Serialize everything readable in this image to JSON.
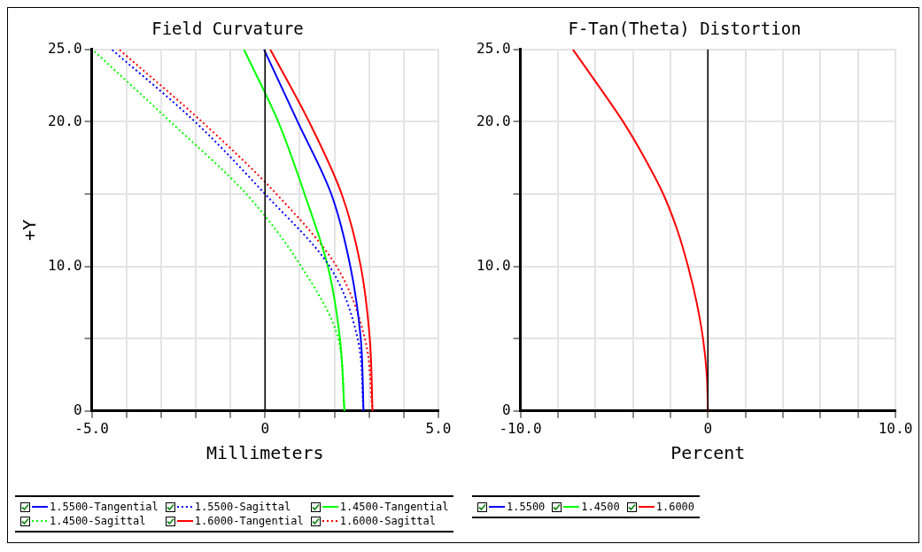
{
  "chart_data": [
    {
      "type": "line",
      "title": "Field Curvature",
      "xlabel": "Millimeters",
      "ylabel": "+Y",
      "xlim": [
        -5,
        5
      ],
      "ylim": [
        0,
        25
      ],
      "xticks": [
        {
          "value": -5,
          "label": "-5.0"
        },
        {
          "value": -4,
          "label": null
        },
        {
          "value": -3,
          "label": null
        },
        {
          "value": -2,
          "label": null
        },
        {
          "value": -1,
          "label": null
        },
        0,
        {
          "value": 1,
          "label": null
        },
        {
          "value": 2,
          "label": null
        },
        {
          "value": 3,
          "label": null
        },
        {
          "value": 4,
          "label": null
        },
        {
          "value": 5,
          "label": "5.0"
        }
      ],
      "yticks": [
        0,
        {
          "value": 5,
          "label": null
        },
        {
          "value": 10,
          "label": "10.0"
        },
        {
          "value": 15,
          "label": null
        },
        {
          "value": 20,
          "label": "20.0"
        },
        {
          "value": 25,
          "label": "25.0"
        }
      ],
      "grid": true,
      "legend": "bottom",
      "ref_lines": [
        {
          "axis": "x",
          "value": 0,
          "color": "#000000"
        }
      ],
      "series": [
        {
          "name": "1.5500-Tangential",
          "color": "#0000ff",
          "line_style": "solid",
          "x": [
            2.84,
            2.76,
            2.46,
            1.91,
            0.94,
            -0.03
          ],
          "values": [
            0,
            5,
            10,
            15,
            20,
            25
          ]
        },
        {
          "name": "1.5500-Sagittal",
          "color": "#0000ff",
          "line_style": "dotted",
          "x": [
            2.84,
            2.67,
            1.86,
            0,
            -2.02,
            -4.42
          ],
          "values": [
            0,
            5,
            10,
            15,
            20,
            25
          ]
        },
        {
          "name": "1.4500-Tangential",
          "color": "#00ff00",
          "line_style": "solid",
          "x": [
            2.29,
            2.16,
            1.81,
            1.14,
            0.38,
            -0.61
          ],
          "values": [
            0,
            5,
            10,
            15,
            20,
            25
          ]
        },
        {
          "name": "1.4500-Sagittal",
          "color": "#00ff00",
          "line_style": "dotted",
          "x": [
            2.29,
            2.11,
            1.04,
            -0.54,
            -2.73,
            -4.98
          ],
          "values": [
            0,
            5,
            10,
            15,
            20,
            25
          ]
        },
        {
          "name": "1.6000-Tangential",
          "color": "#ff0000",
          "line_style": "solid",
          "x": [
            3.1,
            3.02,
            2.76,
            2.21,
            1.27,
            0.15
          ],
          "values": [
            0,
            5,
            10,
            15,
            20,
            25
          ]
        },
        {
          "name": "1.6000-Sagittal",
          "color": "#ff0000",
          "line_style": "dotted",
          "x": [
            3.1,
            2.88,
            2.06,
            0.33,
            -1.82,
            -4.21
          ],
          "values": [
            0,
            5,
            10,
            15,
            20,
            25
          ]
        }
      ]
    },
    {
      "type": "line",
      "title": "F-Tan(Theta) Distortion",
      "xlabel": "Percent",
      "xlim": [
        -10,
        10
      ],
      "ylim": [
        0,
        25
      ],
      "xticks": [
        {
          "value": -10,
          "label": "-10.0"
        },
        {
          "value": -8,
          "label": null
        },
        {
          "value": -6,
          "label": null
        },
        {
          "value": -4,
          "label": null
        },
        {
          "value": -2,
          "label": null
        },
        0,
        {
          "value": 2,
          "label": null
        },
        {
          "value": 4,
          "label": null
        },
        {
          "value": 6,
          "label": null
        },
        {
          "value": 8,
          "label": null
        },
        {
          "value": 10,
          "label": "10.0"
        }
      ],
      "yticks": [
        0,
        {
          "value": 5,
          "label": null
        },
        {
          "value": 10,
          "label": "10.0"
        },
        {
          "value": 15,
          "label": null
        },
        {
          "value": 20,
          "label": "20.0"
        },
        {
          "value": 25,
          "label": "25.0"
        }
      ],
      "grid": true,
      "legend": "bottom",
      "ref_lines": [
        {
          "axis": "x",
          "value": 0,
          "color": "#000000"
        }
      ],
      "series": [
        {
          "name": "1.5500",
          "color": "#0000ff",
          "line_style": "solid",
          "x": [
            null
          ],
          "values": [
            null
          ]
        },
        {
          "name": "1.4500",
          "color": "#00ff00",
          "line_style": "solid",
          "x": [
            null
          ],
          "values": [
            null
          ]
        },
        {
          "name": "1.6000",
          "color": "#ff0000",
          "line_style": "solid",
          "x": [
            0,
            -0.06,
            -0.26,
            -0.6,
            -1.06,
            -1.63,
            -2.38,
            -3.38,
            -4.52,
            -5.84,
            -7.2
          ],
          "values": [
            0,
            2.5,
            5,
            7.5,
            10,
            12.5,
            15,
            17.5,
            20,
            22.5,
            25
          ]
        }
      ]
    }
  ]
}
